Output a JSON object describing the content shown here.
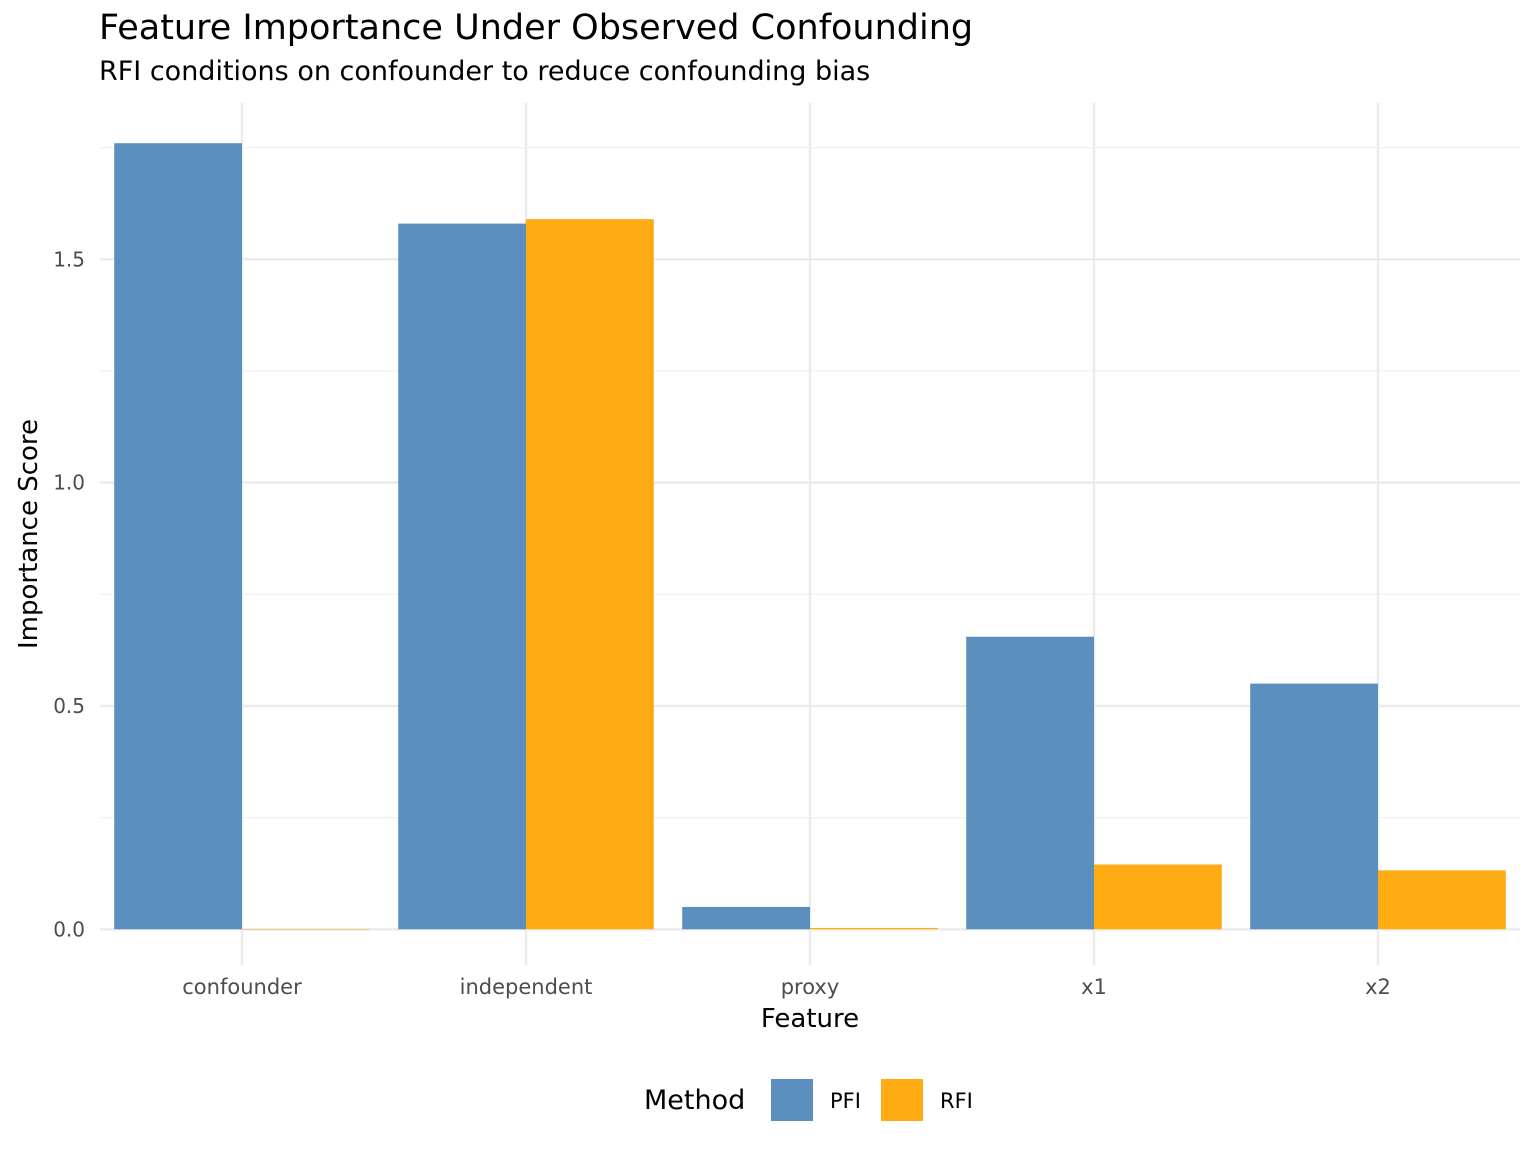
{
  "chart_data": {
    "type": "bar",
    "title": "Feature Importance Under Observed Confounding",
    "subtitle": "RFI conditions on confounder to reduce confounding bias",
    "xlabel": "Feature",
    "ylabel": "Importance Score",
    "categories": [
      "confounder",
      "independent",
      "proxy",
      "x1",
      "x2"
    ],
    "series": [
      {
        "name": "PFI",
        "color": "#5b8fbe",
        "values": [
          1.76,
          1.58,
          0.05,
          0.655,
          0.55
        ]
      },
      {
        "name": "RFI",
        "color": "#ffab14",
        "values": [
          0.0,
          1.59,
          0.003,
          0.145,
          0.132
        ]
      }
    ],
    "ylim": [
      -0.08,
      1.85
    ],
    "yticks": [
      0.0,
      0.5,
      1.0,
      1.5
    ],
    "ytick_labels": [
      "0.0",
      "0.5",
      "1.0",
      "1.5"
    ],
    "grid": true,
    "legend": {
      "title": "Method",
      "placement": "bottom"
    }
  }
}
